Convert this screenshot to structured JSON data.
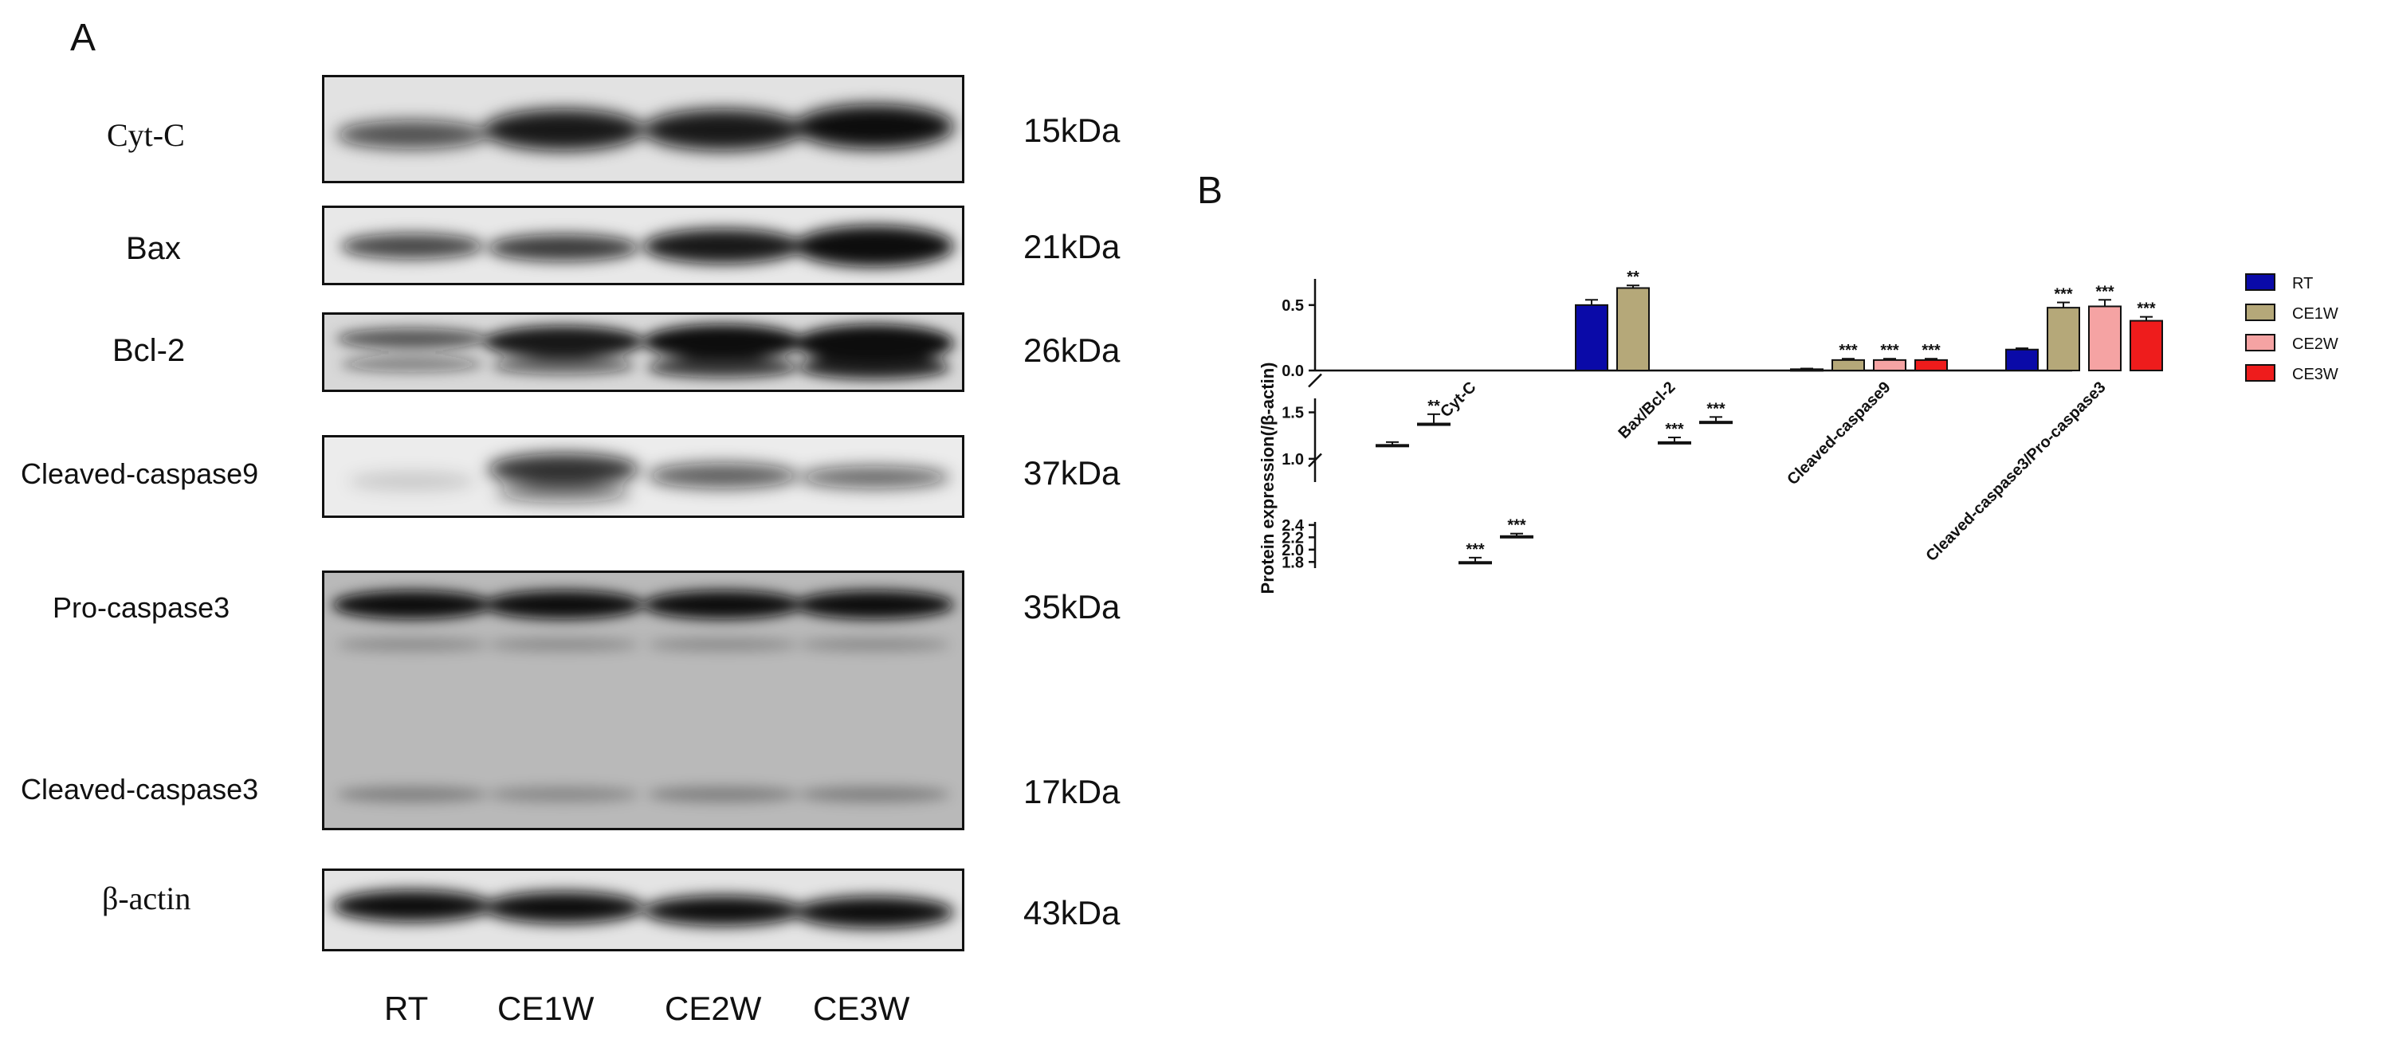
{
  "panel_a": {
    "letter": "A",
    "blots": [
      {
        "label": "Cyt-C",
        "mw": "15kDa"
      },
      {
        "label": "Bax",
        "mw": "21kDa"
      },
      {
        "label": "Bcl-2",
        "mw": "26kDa"
      },
      {
        "label": "Cleaved-caspase9",
        "mw": "37kDa"
      },
      {
        "label": "Pro-caspase3",
        "mw": "35kDa"
      },
      {
        "label": "Cleaved-caspase3",
        "mw": "17kDa"
      },
      {
        "label": "β-actin",
        "mw": "43kDa"
      }
    ],
    "lanes": [
      "RT",
      "CE1W",
      "CE2W",
      "CE3W"
    ]
  },
  "panel_b": {
    "letter": "B",
    "chart_data": {
      "type": "bar",
      "ylabel": "Protein expression(/β-actin)",
      "categories": [
        "Cyt-C",
        "Bax/Bcl-2",
        "Cleaved-caspase9",
        "Cleaved-caspase3/Pro-caspase3"
      ],
      "series": [
        {
          "name": "RT",
          "color": "#0a0aa8",
          "values": [
            1.15,
            0.5,
            0.01,
            0.16
          ],
          "errors": [
            0.03,
            0.04,
            0.005,
            0.01
          ],
          "sig": [
            "",
            "",
            "",
            ""
          ]
        },
        {
          "name": "CE1W",
          "color": "#b5a879",
          "values": [
            1.38,
            0.63,
            0.08,
            0.48
          ],
          "errors": [
            0.1,
            0.02,
            0.01,
            0.04
          ],
          "sig": [
            "**",
            "**",
            "***",
            "***"
          ]
        },
        {
          "name": "CE2W",
          "color": "#f5a3a3",
          "values": [
            1.8,
            1.18,
            0.08,
            0.49
          ],
          "errors": [
            0.07,
            0.05,
            0.01,
            0.05
          ],
          "sig": [
            "***",
            "***",
            "***",
            "***"
          ]
        },
        {
          "name": "CE3W",
          "color": "#ee1c1c",
          "values": [
            2.22,
            1.4,
            0.08,
            0.38
          ],
          "errors": [
            0.04,
            0.05,
            0.01,
            0.03
          ],
          "sig": [
            "***",
            "***",
            "***",
            "***"
          ]
        }
      ],
      "y_segments": [
        {
          "range": [
            0,
            0.7
          ],
          "ticks": [
            "0.0",
            "0.5"
          ]
        },
        {
          "range": [
            0.75,
            1.65
          ],
          "ticks": [
            "1.0",
            "1.5"
          ]
        },
        {
          "range": [
            1.7,
            2.45
          ],
          "ticks": [
            "1.8",
            "2.0",
            "2.2",
            "2.4"
          ]
        }
      ],
      "legend_position": "top-right"
    }
  }
}
